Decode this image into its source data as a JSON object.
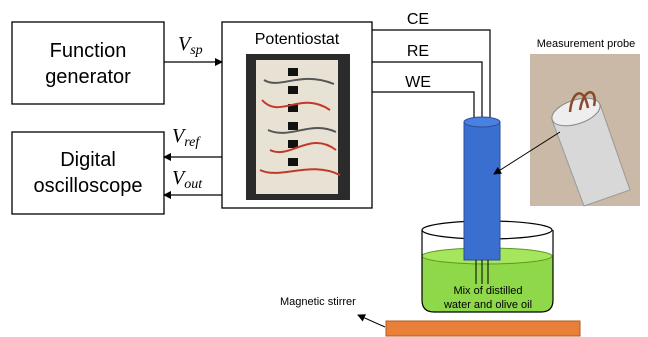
{
  "blocks": {
    "function_generator": [
      "Function",
      "generator"
    ],
    "potentiostat": "Potentiostat",
    "oscilloscope": [
      "Digital",
      "oscilloscope"
    ]
  },
  "signals": {
    "v_sp": {
      "main": "V",
      "sub": "sp"
    },
    "v_ref": {
      "main": "V",
      "sub": "ref"
    },
    "v_out": {
      "main": "V",
      "sub": "out"
    }
  },
  "electrodes": [
    "CE",
    "RE",
    "WE"
  ],
  "labels": {
    "probe": "Measurement probe",
    "stirrer": "Magnetic stirrer",
    "mixture": [
      "Mix of distilled",
      "water and olive oil"
    ]
  }
}
